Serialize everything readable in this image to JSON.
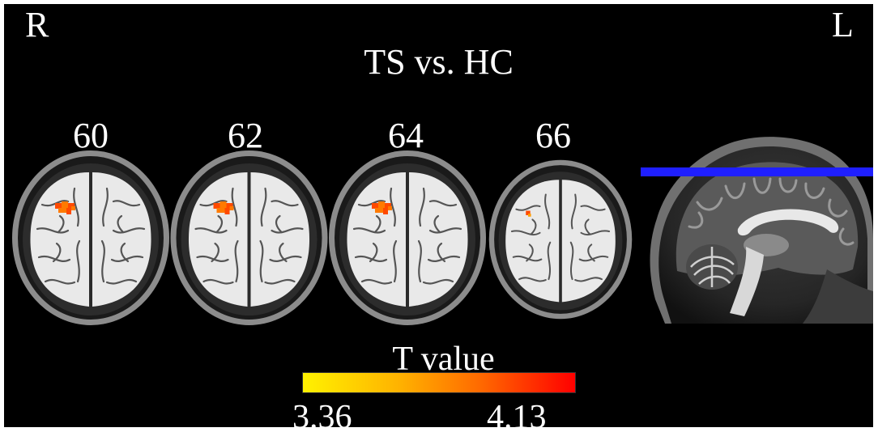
{
  "orientation": {
    "right_label": "R",
    "left_label": "L"
  },
  "title": "TS vs. HC",
  "slices": [
    {
      "number": "60",
      "activation_size": "medium"
    },
    {
      "number": "62",
      "activation_size": "medium"
    },
    {
      "number": "64",
      "activation_size": "medium"
    },
    {
      "number": "66",
      "activation_size": "small"
    }
  ],
  "colorbar": {
    "title": "T value",
    "min": "3.36",
    "max": "4.13",
    "low_color": "#fff200",
    "high_color": "#ff0000"
  },
  "colors": {
    "background": "#000000",
    "text": "#ffffff",
    "slice_line": "#1f1fff",
    "activation": "#ff4a00"
  },
  "icons": {
    "sagittal_view": "sagittal-brain-icon",
    "axial_view": "axial-brain-slice-icon"
  }
}
